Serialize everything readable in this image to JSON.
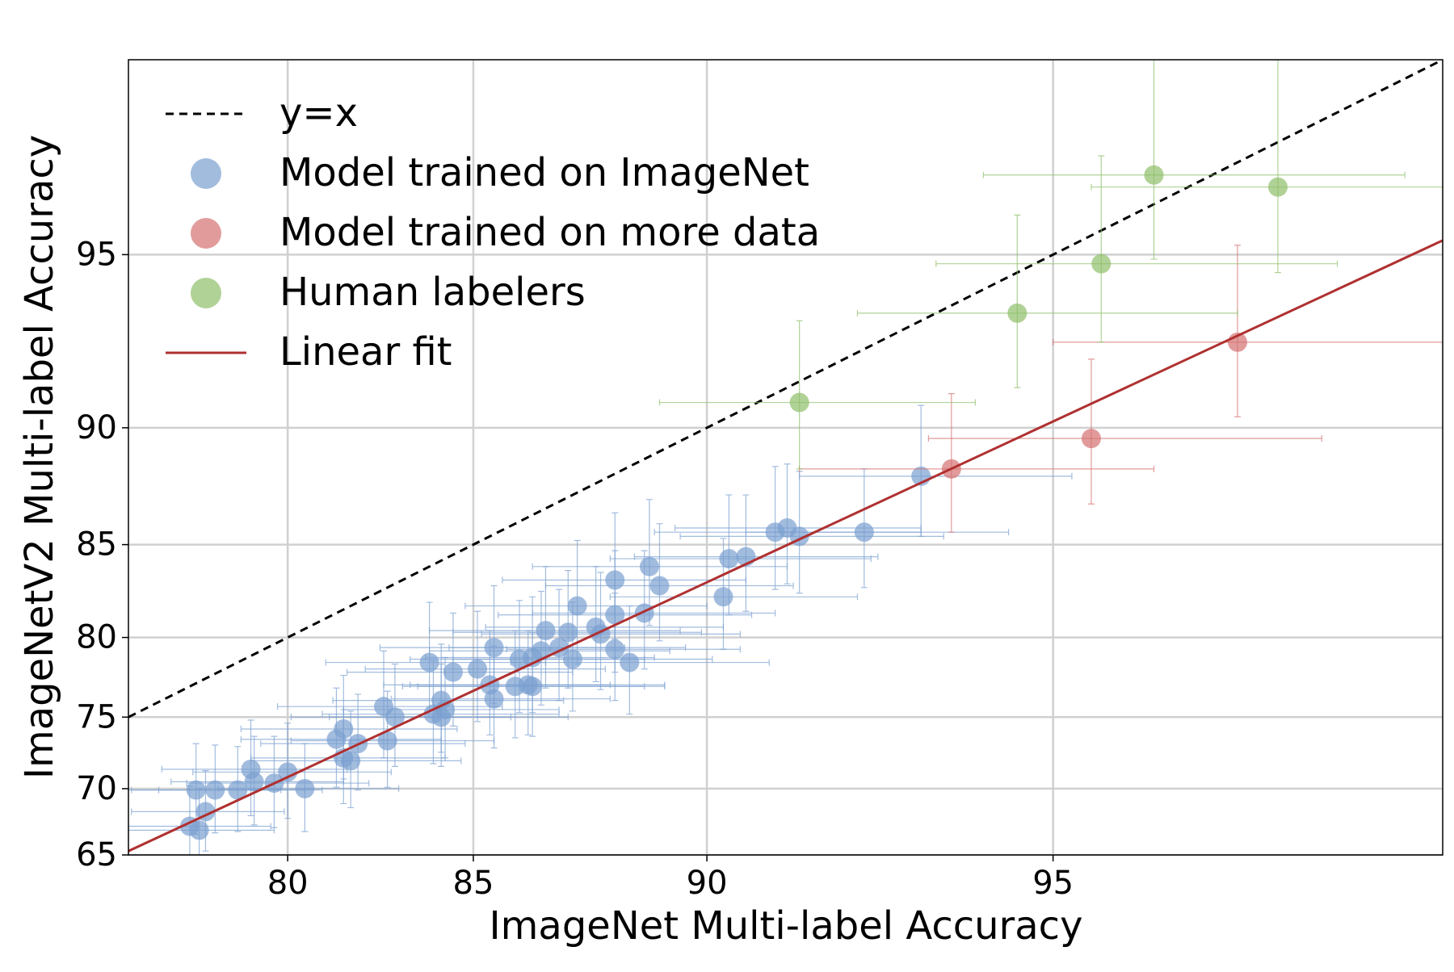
{
  "chart_data": {
    "type": "scatter",
    "xlabel": "ImageNet Multi-label Accuracy",
    "ylabel": "ImageNetV2 Multi-label Accuracy",
    "xscale": "probit",
    "yscale": "probit",
    "xlim": [
      75,
      98
    ],
    "ylim": [
      65,
      98
    ],
    "xticks": [
      80,
      85,
      90,
      95
    ],
    "yticks": [
      65,
      70,
      75,
      80,
      85,
      90,
      95
    ],
    "grid": true,
    "legend": "upper left",
    "series": [
      {
        "name": "y=x",
        "mode": "line",
        "style": "dashed",
        "color": "#000000",
        "x": [
          75,
          98
        ],
        "values": [
          75,
          98
        ]
      },
      {
        "name": "Model trained on ImageNet",
        "mode": "markers",
        "color": "#7b9fd0",
        "x": [
          77.0,
          77.3,
          77.2,
          77.5,
          77.8,
          78.5,
          78.9,
          79.0,
          79.6,
          80.0,
          80.5,
          81.4,
          81.6,
          81.6,
          81.8,
          82.0,
          82.7,
          82.8,
          83.0,
          83.9,
          84.0,
          84.2,
          84.3,
          84.2,
          84.5,
          85.1,
          85.4,
          85.5,
          85.5,
          86.0,
          86.1,
          86.3,
          86.4,
          86.4,
          86.6,
          86.7,
          87.0,
          87.2,
          87.3,
          87.4,
          87.8,
          87.9,
          88.2,
          88.2,
          88.2,
          88.5,
          88.8,
          88.9,
          89.1,
          90.3,
          90.4,
          90.7,
          91.2,
          91.4,
          91.6,
          92.6,
          93.4
        ],
        "values": [
          67.2,
          66.9,
          69.9,
          68.3,
          69.9,
          69.9,
          71.4,
          70.5,
          70.4,
          71.2,
          70.0,
          73.5,
          74.2,
          72.2,
          72.0,
          73.2,
          75.7,
          73.4,
          75.0,
          78.5,
          75.2,
          76.1,
          75.5,
          75.0,
          77.9,
          78.1,
          77.1,
          79.4,
          76.2,
          77.0,
          78.7,
          77.1,
          78.8,
          77.0,
          79.2,
          80.4,
          79.4,
          80.3,
          78.7,
          81.8,
          80.6,
          80.2,
          83.2,
          81.3,
          79.3,
          78.5,
          81.4,
          83.9,
          82.9,
          82.3,
          84.3,
          84.4,
          85.6,
          85.8,
          85.4,
          85.6,
          88.1
        ],
        "xerr": [
          2.5,
          2.3,
          2.6,
          2.4,
          2.7,
          2.5,
          2.8,
          2.6,
          2.7,
          2.9,
          2.6,
          2.8,
          3.0,
          2.7,
          2.9,
          2.8,
          3.0,
          2.7,
          2.9,
          2.8,
          3.0,
          2.9,
          2.7,
          3.0,
          2.8,
          2.9,
          2.7,
          2.9,
          2.6,
          2.8,
          2.7,
          2.9,
          2.6,
          2.8,
          2.7,
          2.8,
          2.6,
          2.7,
          2.8,
          2.6,
          2.5,
          2.7,
          2.5,
          2.6,
          2.4,
          2.6,
          2.4,
          2.5,
          2.4,
          2.2,
          2.3,
          2.1,
          2.2,
          2.0,
          2.1,
          1.9,
          1.8
        ],
        "yerr": [
          3.0,
          3.1,
          3.3,
          3.0,
          3.2,
          3.1,
          3.4,
          3.2,
          3.3,
          3.4,
          3.2,
          3.4,
          3.5,
          3.3,
          3.4,
          3.3,
          3.5,
          3.3,
          3.4,
          3.5,
          3.4,
          3.5,
          3.3,
          3.4,
          3.5,
          3.4,
          3.3,
          3.5,
          3.3,
          3.4,
          3.4,
          3.3,
          3.5,
          3.3,
          3.4,
          3.5,
          3.3,
          3.4,
          3.3,
          3.4,
          3.3,
          3.4,
          3.3,
          3.4,
          3.2,
          3.3,
          3.3,
          3.2,
          3.1,
          3.0,
          3.0,
          2.9,
          2.9,
          2.8,
          2.9,
          2.8,
          2.7
        ]
      },
      {
        "name": "Model trained on more data",
        "mode": "markers",
        "color": "#d67070",
        "x": [
          93.8,
          95.4,
          96.7
        ],
        "values": [
          88.4,
          89.6,
          92.8
        ],
        "xerr": [
          2.2,
          1.9,
          1.7
        ],
        "yerr": [
          2.8,
          2.7,
          2.4
        ]
      },
      {
        "name": "Human labelers",
        "mode": "markers",
        "color": "#8fbf6a",
        "x": [
          91.6,
          94.6,
          95.5,
          96.0,
          97.0
        ],
        "values": [
          90.9,
          93.6,
          94.8,
          96.5,
          96.3
        ],
        "xerr": [
          2.5,
          2.1,
          1.9,
          1.8,
          1.6
        ],
        "yerr": [
          2.5,
          2.2,
          2.0,
          1.6,
          1.7
        ]
      },
      {
        "name": "Linear fit",
        "mode": "line",
        "style": "solid",
        "color": "#b03030",
        "x": [
          75,
          98
        ],
        "values": [
          65.3,
          95.3
        ]
      }
    ]
  }
}
